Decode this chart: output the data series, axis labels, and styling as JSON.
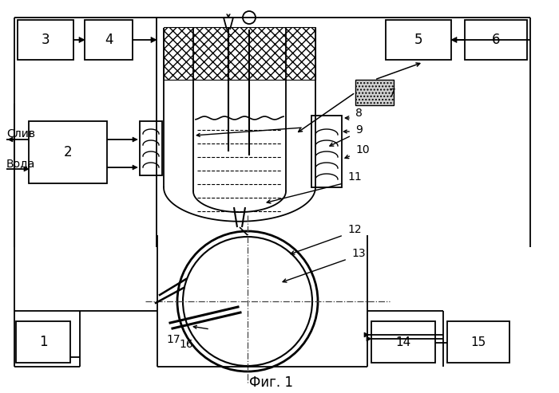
{
  "bg_color": "#ffffff",
  "line_color": "#000000",
  "fig_caption": "Фиг. 1",
  "sliv": "Слив",
  "voda": "Вода"
}
